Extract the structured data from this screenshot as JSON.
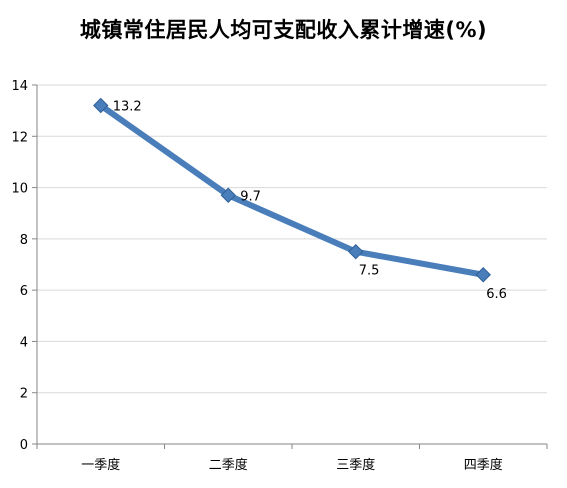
{
  "chart_data": {
    "type": "line",
    "title": "城镇常住居民人均可支配收入累计增速(%)",
    "categories": [
      "一季度",
      "二季度",
      "三季度",
      "四季度"
    ],
    "series": [
      {
        "values": [
          13.2,
          9.7,
          7.5,
          6.6
        ],
        "labels": [
          "13.2",
          "9.7",
          "7.5",
          "6.6"
        ]
      }
    ],
    "ylim": [
      0,
      14
    ],
    "yticks": [
      0,
      2,
      4,
      6,
      8,
      10,
      12,
      14
    ],
    "grid": true,
    "legend": "none",
    "colors": {
      "line": "#4a7ebb",
      "marker": "#4a7ebb",
      "marker_edge": "#2f5f96",
      "grid": "#d9d9d9",
      "axis": "#868686"
    }
  }
}
